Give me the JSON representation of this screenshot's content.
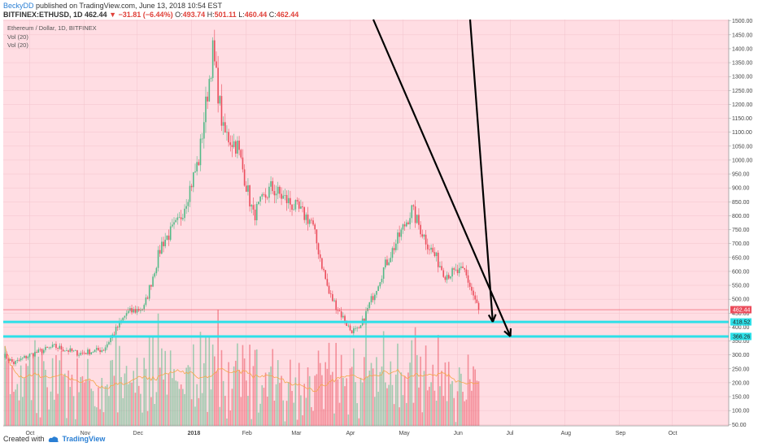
{
  "header": {
    "author": "BeckyDD",
    "published": "published on TradingView.com, June 13, 2018 10:54 EST",
    "symbol": "BITFINEX:ETHUSD, 1D",
    "last": "462.44",
    "change_arrow": "▼",
    "change": "−31.81 (−6.44%)",
    "o_label": "O:",
    "o_value": "493.74",
    "h_label": "H:",
    "h_value": "501.11",
    "l_label": "L:",
    "l_value": "460.44",
    "c_label": "C:",
    "c_value": "462.44"
  },
  "legend": {
    "title": "Ethereum / Dollar, 1D, BITFINEX",
    "vol1": "Vol (20)",
    "vol2": "Vol (20)"
  },
  "footer": {
    "created_with": "Created with",
    "brand": "TradingView"
  },
  "colors": {
    "background": "#ffdde3",
    "up": "#53b987",
    "down": "#eb4d5c",
    "horizontal_lines": "#2ee0e8",
    "ma": "#f5a64a",
    "arrows": "#000000",
    "price_tag": "#eb4d5c"
  },
  "chart_data": {
    "type": "candlestick",
    "title": "Ethereum / Dollar, 1D, BITFINEX",
    "x_labels": [
      "Oct",
      "Nov",
      "Dec",
      "2018",
      "Feb",
      "Mar",
      "Apr",
      "May",
      "Jun",
      "Jul",
      "Aug",
      "Sep",
      "Oct"
    ],
    "y_ticks": [
      1500,
      1450,
      1400,
      1350,
      1300,
      1250,
      1200,
      1150,
      1100,
      1050,
      1000,
      950,
      900,
      850,
      800,
      750,
      700,
      650,
      600,
      550,
      500,
      450,
      400,
      350,
      300,
      250,
      200,
      150,
      100,
      50
    ],
    "ylim": [
      45,
      1505
    ],
    "last_price": "462.44",
    "support_lines": [
      "418.52",
      "366.26"
    ],
    "annotations": [
      "two black trend arrows pointing down to the 418.52 and 366.26 support lines"
    ],
    "price_path": [
      {
        "date": "2017-09-16",
        "price": 300
      },
      {
        "date": "2017-09-22",
        "price": 270
      },
      {
        "date": "2017-10-01",
        "price": 300
      },
      {
        "date": "2017-10-15",
        "price": 330
      },
      {
        "date": "2017-10-29",
        "price": 305
      },
      {
        "date": "2017-11-12",
        "price": 320
      },
      {
        "date": "2017-11-25",
        "price": 450
      },
      {
        "date": "2017-12-05",
        "price": 470
      },
      {
        "date": "2017-12-15",
        "price": 700
      },
      {
        "date": "2017-12-25",
        "price": 780
      },
      {
        "date": "2018-01-05",
        "price": 1000
      },
      {
        "date": "2018-01-13",
        "price": 1390
      },
      {
        "date": "2018-01-19",
        "price": 1100
      },
      {
        "date": "2018-01-27",
        "price": 1050
      },
      {
        "date": "2018-02-05",
        "price": 800
      },
      {
        "date": "2018-02-15",
        "price": 900
      },
      {
        "date": "2018-02-25",
        "price": 850
      },
      {
        "date": "2018-03-10",
        "price": 780
      },
      {
        "date": "2018-03-20",
        "price": 520
      },
      {
        "date": "2018-04-01",
        "price": 390
      },
      {
        "date": "2018-04-06",
        "price": 385
      },
      {
        "date": "2018-04-20",
        "price": 610
      },
      {
        "date": "2018-05-06",
        "price": 820
      },
      {
        "date": "2018-05-15",
        "price": 700
      },
      {
        "date": "2018-05-25",
        "price": 590
      },
      {
        "date": "2018-06-05",
        "price": 600
      },
      {
        "date": "2018-06-13",
        "price": 462
      }
    ],
    "volume_range": [
      50,
      650
    ]
  }
}
